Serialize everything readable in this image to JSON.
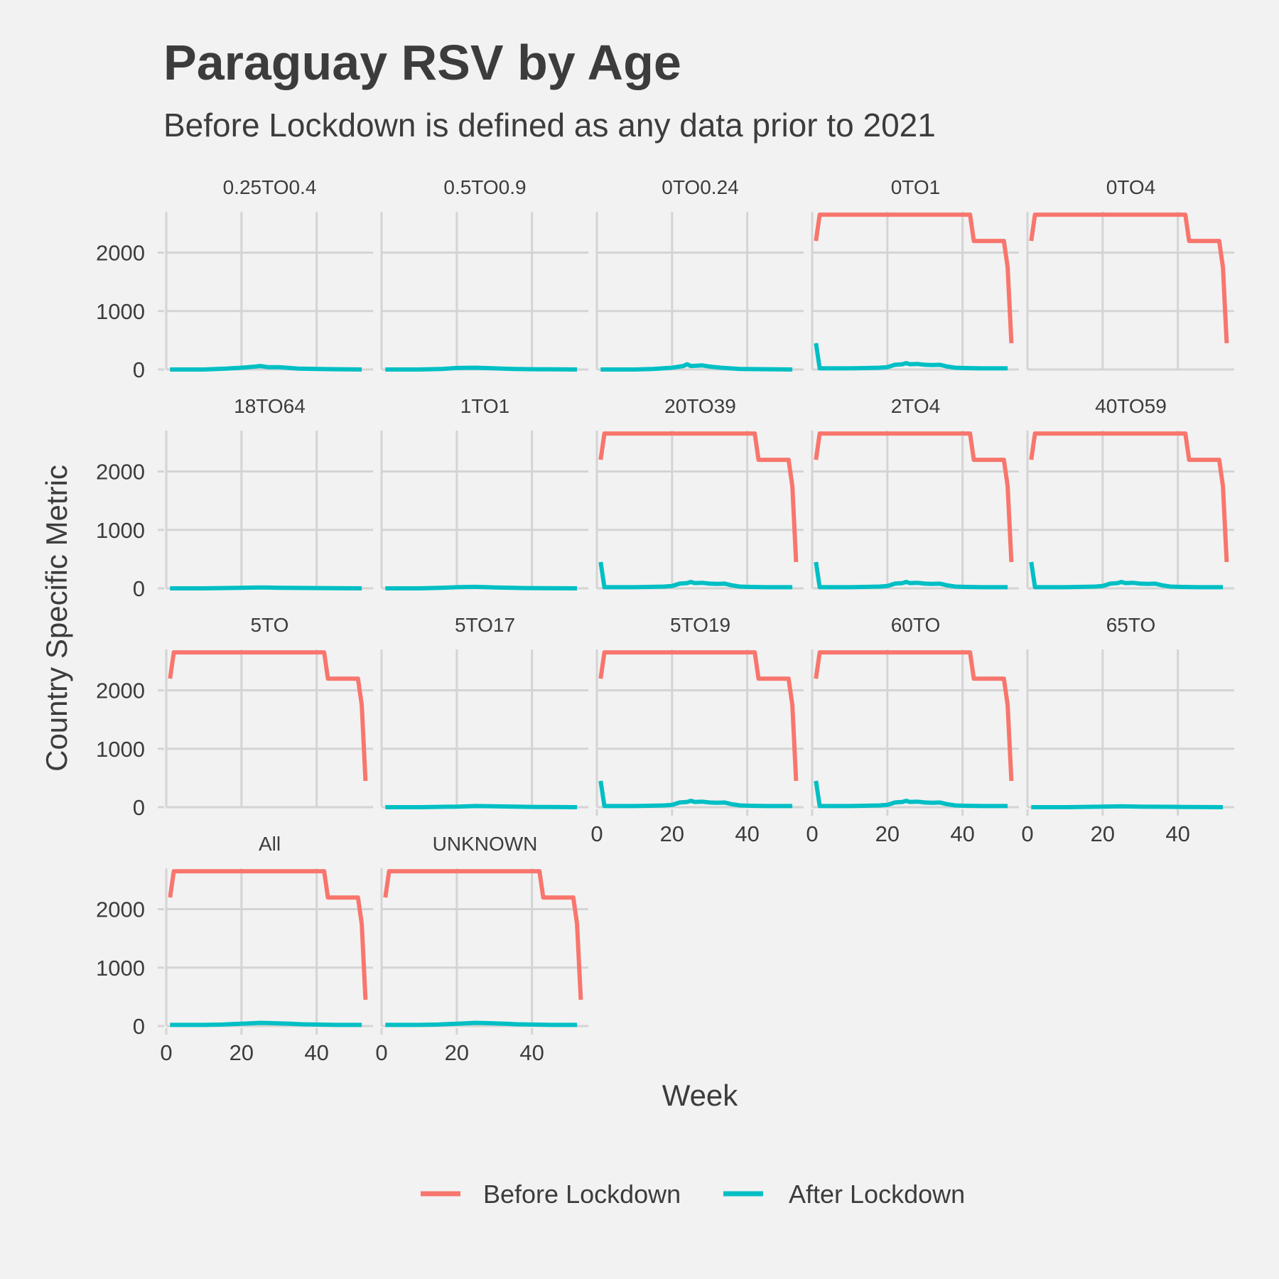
{
  "chart_data": {
    "type": "line",
    "title": "Paraguay RSV by Age",
    "subtitle": "Before Lockdown is defined as any data prior to 2021",
    "xlabel": "Week",
    "ylabel": "Country Specific Metric",
    "xlim": [
      0,
      55
    ],
    "ylim": [
      0,
      2700
    ],
    "x_ticks": [
      0,
      20,
      40
    ],
    "y_ticks": [
      0,
      1000,
      2000
    ],
    "grid": true,
    "legend_position": "bottom",
    "series_styles": [
      {
        "name": "Before Lockdown",
        "color": "#f8766d"
      },
      {
        "name": "After Lockdown",
        "color": "#00bfc4"
      }
    ],
    "facets": [
      {
        "label": "0.25TO0.4",
        "before": null,
        "after": [
          [
            1,
            0
          ],
          [
            10,
            0
          ],
          [
            16,
            15
          ],
          [
            20,
            30
          ],
          [
            23,
            45
          ],
          [
            25,
            60
          ],
          [
            27,
            40
          ],
          [
            30,
            40
          ],
          [
            35,
            15
          ],
          [
            40,
            10
          ],
          [
            45,
            5
          ],
          [
            52,
            0
          ]
        ]
      },
      {
        "label": "0.5TO0.9",
        "before": null,
        "after": [
          [
            1,
            0
          ],
          [
            10,
            0
          ],
          [
            16,
            10
          ],
          [
            20,
            25
          ],
          [
            25,
            30
          ],
          [
            30,
            20
          ],
          [
            35,
            10
          ],
          [
            40,
            5
          ],
          [
            52,
            0
          ]
        ]
      },
      {
        "label": "0TO0.24",
        "before": null,
        "after": [
          [
            1,
            0
          ],
          [
            10,
            0
          ],
          [
            15,
            10
          ],
          [
            20,
            30
          ],
          [
            23,
            60
          ],
          [
            24,
            90
          ],
          [
            25,
            60
          ],
          [
            28,
            70
          ],
          [
            30,
            50
          ],
          [
            33,
            30
          ],
          [
            38,
            10
          ],
          [
            45,
            5
          ],
          [
            52,
            0
          ]
        ]
      },
      {
        "label": "0TO1",
        "before": "full",
        "after": "full"
      },
      {
        "label": "0TO4",
        "before": "full",
        "after": null
      },
      {
        "label": "18TO64",
        "before": null,
        "after": [
          [
            1,
            0
          ],
          [
            10,
            0
          ],
          [
            20,
            10
          ],
          [
            25,
            15
          ],
          [
            30,
            10
          ],
          [
            40,
            5
          ],
          [
            52,
            0
          ]
        ]
      },
      {
        "label": "1TO1",
        "before": null,
        "after": [
          [
            1,
            0
          ],
          [
            10,
            0
          ],
          [
            16,
            10
          ],
          [
            20,
            20
          ],
          [
            25,
            25
          ],
          [
            30,
            15
          ],
          [
            38,
            5
          ],
          [
            52,
            0
          ]
        ]
      },
      {
        "label": "20TO39",
        "before": "full",
        "after": "full"
      },
      {
        "label": "2TO4",
        "before": "full",
        "after": "full"
      },
      {
        "label": "40TO59",
        "before": "full",
        "after": "full"
      },
      {
        "label": "5TO",
        "before": "full",
        "after": null
      },
      {
        "label": "5TO17",
        "before": null,
        "after": [
          [
            1,
            0
          ],
          [
            10,
            0
          ],
          [
            20,
            10
          ],
          [
            25,
            20
          ],
          [
            30,
            15
          ],
          [
            40,
            5
          ],
          [
            52,
            0
          ]
        ]
      },
      {
        "label": "5TO19",
        "before": "full",
        "after": "full"
      },
      {
        "label": "60TO",
        "before": "full",
        "after": "full"
      },
      {
        "label": "65TO",
        "before": null,
        "after": [
          [
            1,
            0
          ],
          [
            10,
            0
          ],
          [
            20,
            10
          ],
          [
            25,
            15
          ],
          [
            30,
            10
          ],
          [
            40,
            5
          ],
          [
            52,
            0
          ]
        ]
      },
      {
        "label": "All",
        "before": "full",
        "after": "small"
      },
      {
        "label": "UNKNOWN",
        "before": "full",
        "after": "small"
      }
    ],
    "series_templates": {
      "full_before": [
        [
          1,
          2200
        ],
        [
          2,
          2650
        ],
        [
          42,
          2650
        ],
        [
          43,
          2200
        ],
        [
          51,
          2200
        ],
        [
          52,
          1750
        ],
        [
          53,
          450
        ]
      ],
      "full_after": [
        [
          1,
          450
        ],
        [
          2,
          20
        ],
        [
          10,
          20
        ],
        [
          15,
          25
        ],
        [
          18,
          30
        ],
        [
          20,
          40
        ],
        [
          22,
          80
        ],
        [
          24,
          90
        ],
        [
          25,
          110
        ],
        [
          26,
          90
        ],
        [
          28,
          95
        ],
        [
          30,
          80
        ],
        [
          32,
          75
        ],
        [
          34,
          80
        ],
        [
          36,
          50
        ],
        [
          38,
          30
        ],
        [
          40,
          25
        ],
        [
          45,
          20
        ],
        [
          52,
          20
        ]
      ],
      "small_after": [
        [
          1,
          20
        ],
        [
          10,
          20
        ],
        [
          15,
          25
        ],
        [
          18,
          35
        ],
        [
          20,
          40
        ],
        [
          22,
          45
        ],
        [
          25,
          55
        ],
        [
          28,
          50
        ],
        [
          30,
          45
        ],
        [
          33,
          40
        ],
        [
          36,
          30
        ],
        [
          40,
          25
        ],
        [
          45,
          20
        ],
        [
          52,
          20
        ]
      ]
    }
  }
}
